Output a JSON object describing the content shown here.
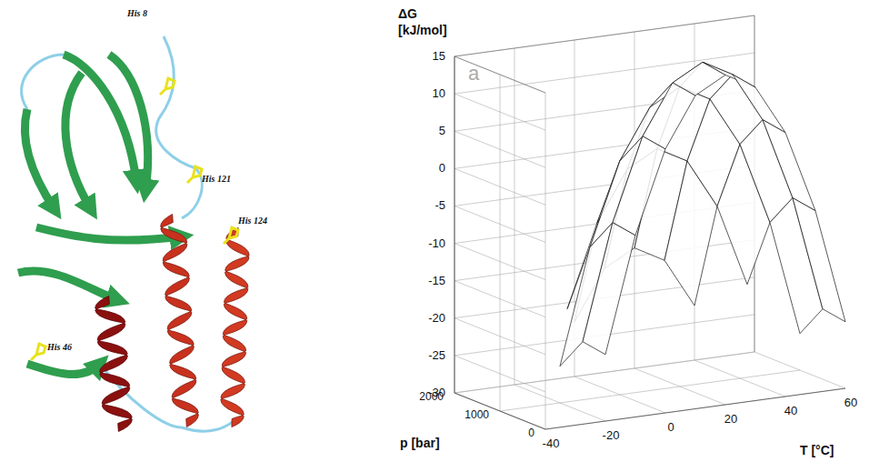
{
  "structure": {
    "labels": [
      "His 8",
      "His 121",
      "His 124",
      "His 46"
    ]
  },
  "chart_data": {
    "type": "surface",
    "title": "a",
    "x_label": "T [°C]",
    "y_label": "p [bar]",
    "z_label": "ΔG [kJ/mol]",
    "x": [
      -40,
      -30,
      -20,
      -10,
      0,
      10,
      20,
      30,
      40,
      50,
      60
    ],
    "y": [
      0,
      500,
      1000,
      1500,
      2000
    ],
    "values": [
      [
        null,
        null,
        -21.1,
        -5.7,
        5.3,
        11.9,
        14.1,
        11.9,
        5.3,
        -5.7,
        -21.1
      ],
      [
        null,
        null,
        -20.6,
        -5.2,
        5.8,
        12.4,
        14.6,
        12.4,
        5.8,
        -5.2,
        -20.6
      ],
      [
        null,
        null,
        -25.1,
        -9.7,
        1.3,
        7.9,
        10.1,
        7.9,
        1.3,
        -9.7,
        -25.1
      ],
      [
        null,
        null,
        null,
        -19.2,
        -8.2,
        -1.6,
        0.6,
        -1.6,
        -8.2,
        -19.2,
        null
      ],
      [
        null,
        null,
        null,
        null,
        -22.7,
        -16.1,
        -13.9,
        -16.1,
        -22.7,
        null,
        null
      ]
    ],
    "xlim": [
      -40,
      60
    ],
    "xticks": [
      -40,
      -20,
      0,
      20,
      40,
      60
    ],
    "ylim": [
      0,
      2000
    ],
    "yticks": [
      0,
      1000,
      2000
    ],
    "zlim": [
      -30,
      15
    ],
    "zticks": [
      -30,
      -25,
      -20,
      -15,
      -10,
      -5,
      0,
      5,
      10,
      15
    ],
    "grid": true
  }
}
